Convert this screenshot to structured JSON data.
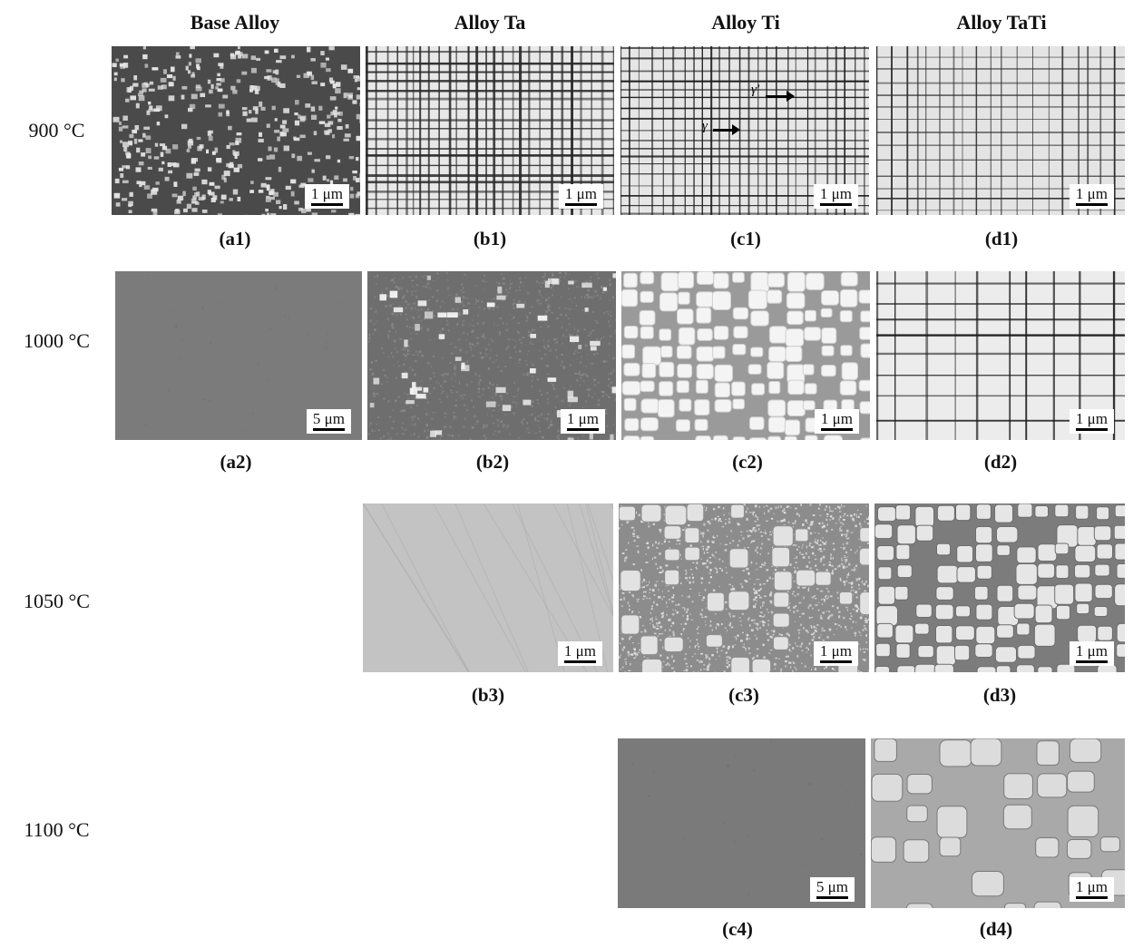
{
  "columns": [
    "Base Alloy",
    "Alloy Ta",
    "Alloy Ti",
    "Alloy TaTi"
  ],
  "rows": [
    "900 °C",
    "1000 °C",
    "1050 °C",
    "1100 °C"
  ],
  "panels": {
    "a1": {
      "caption": "(a1)",
      "scale": "1 μm"
    },
    "b1": {
      "caption": "(b1)",
      "scale": "1 μm"
    },
    "c1": {
      "caption": "(c1)",
      "scale": "1 μm",
      "phase_labels": [
        "γ'",
        "γ"
      ]
    },
    "d1": {
      "caption": "(d1)",
      "scale": "1 μm"
    },
    "a2": {
      "caption": "(a2)",
      "scale": "5 μm"
    },
    "b2": {
      "caption": "(b2)",
      "scale": "1 μm"
    },
    "c2": {
      "caption": "(c2)",
      "scale": "1 μm"
    },
    "d2": {
      "caption": "(d2)",
      "scale": "1 μm"
    },
    "b3": {
      "caption": "(b3)",
      "scale": "1 μm"
    },
    "c3": {
      "caption": "(c3)",
      "scale": "1 μm"
    },
    "d3": {
      "caption": "(d3)",
      "scale": "1 μm"
    },
    "c4": {
      "caption": "(c4)",
      "scale": "5 μm"
    },
    "d4": {
      "caption": "(d4)",
      "scale": "1 μm"
    }
  }
}
